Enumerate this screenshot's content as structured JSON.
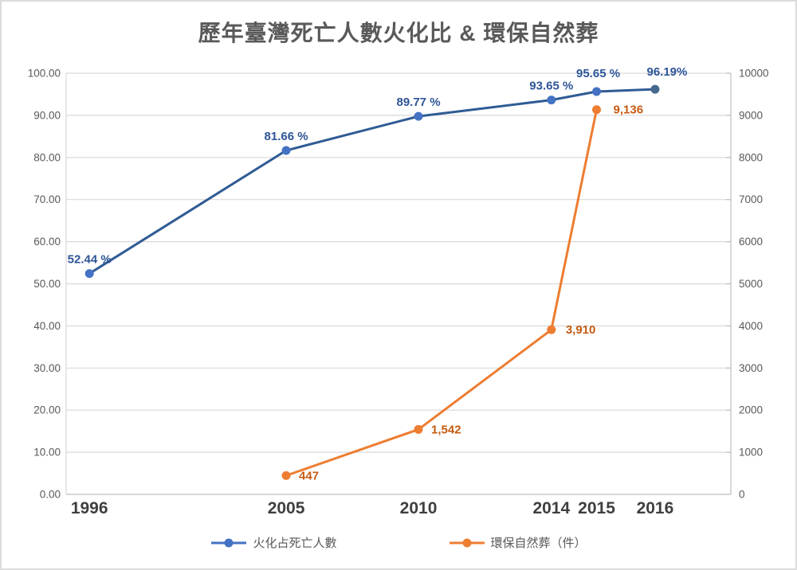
{
  "title": "歷年臺灣死亡人數火化比 & 環保自然葬",
  "chart_data": {
    "type": "line",
    "title": "歷年臺灣死亡人數火化比 & 環保自然葬",
    "x_categories": [
      "1996",
      "2005",
      "2010",
      "2014",
      "2015",
      "2016"
    ],
    "x_positions_pct": [
      3.5,
      33.1,
      53.0,
      73.0,
      79.8,
      88.6
    ],
    "grid": true,
    "legend_position": "bottom",
    "left_axis": {
      "min": 0,
      "max": 100,
      "step": 10,
      "labels": [
        "0.00",
        "10.00",
        "20.00",
        "30.00",
        "40.00",
        "50.00",
        "60.00",
        "70.00",
        "80.00",
        "90.00",
        "100.00"
      ]
    },
    "right_axis": {
      "min": 0,
      "max": 10000,
      "step": 1000,
      "labels": [
        "0",
        "1000",
        "2000",
        "3000",
        "4000",
        "5000",
        "6000",
        "7000",
        "8000",
        "9000",
        "10000"
      ]
    },
    "series": [
      {
        "name": "火化占死亡人數",
        "axis": "left",
        "line_color": "#2f5b94",
        "marker_color": "#4472c4",
        "last_marker_color": "#44688e",
        "label_color": "#2e5597",
        "label_placement": "above",
        "values": [
          52.44,
          81.66,
          89.77,
          93.65,
          95.65,
          96.19
        ],
        "data_labels": [
          "52.44 %",
          "81.66 %",
          "89.77 %",
          "93.65 %",
          "95.65 %",
          "96.19%"
        ],
        "label_dx": [
          0,
          0,
          0,
          0,
          2,
          15
        ],
        "label_dy": [
          0,
          0,
          0,
          0,
          -5,
          -4
        ]
      },
      {
        "name": "環保自然葬（件）",
        "axis": "right",
        "line_color": "#ed7d31",
        "marker_color": "#ed7d31",
        "label_color": "#c55a11",
        "label_placement": "right",
        "values": [
          null,
          447,
          1542,
          3910,
          9136,
          null
        ],
        "data_labels": [
          null,
          "447",
          "1,542",
          "3,910",
          "9,136",
          null
        ],
        "label_dx": [
          0,
          0,
          0,
          2,
          5,
          0
        ],
        "label_dy": [
          0,
          0,
          0,
          0,
          0,
          0
        ]
      }
    ],
    "colors": {
      "grid": "#d9d9d9",
      "axis_line": "#bfbfbf",
      "tick_text": "#595959",
      "x_tick_text": "#3f3f3f"
    }
  }
}
